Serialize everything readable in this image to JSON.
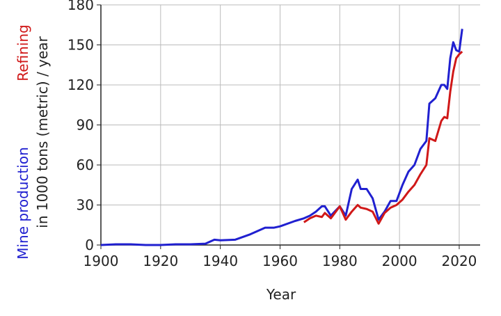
{
  "chart_data": {
    "type": "line",
    "xlabel": "Year",
    "ylabel": "in 1000 tons (metric) / year",
    "x": [
      1900,
      1905,
      1910,
      1915,
      1920,
      1925,
      1930,
      1935,
      1938,
      1940,
      1945,
      1950,
      1955,
      1958,
      1960,
      1965,
      1968,
      1970,
      1972,
      1974,
      1975,
      1977,
      1980,
      1982,
      1984,
      1986,
      1987,
      1989,
      1991,
      1993,
      1995,
      1997,
      1999,
      2001,
      2003,
      2005,
      2007,
      2009,
      2010,
      2012,
      2014,
      2015,
      2016,
      2017,
      2018,
      2019,
      2020,
      2021
    ],
    "series": [
      {
        "name": "Mine production",
        "color": "#2020d0",
        "values": [
          0,
          0.5,
          0.5,
          0,
          0,
          0.5,
          0.5,
          1,
          4,
          3.5,
          4,
          8,
          13,
          13,
          14,
          18,
          20,
          22,
          25,
          29,
          29,
          22,
          29,
          22,
          42,
          49,
          42,
          42,
          35,
          19,
          25,
          33,
          33,
          45,
          55,
          60,
          72,
          78,
          106,
          110,
          120,
          120,
          117,
          140,
          152,
          146,
          145,
          162
        ]
      },
      {
        "name": "Refining",
        "color": "#d01818",
        "values": [
          null,
          null,
          null,
          null,
          null,
          null,
          null,
          null,
          null,
          null,
          null,
          null,
          null,
          null,
          null,
          null,
          17,
          20,
          22,
          21,
          24,
          20,
          29,
          19,
          25,
          30,
          28,
          27,
          25,
          16,
          24,
          28,
          30,
          34,
          40,
          45,
          53,
          60,
          80,
          78,
          93,
          96,
          95,
          115,
          130,
          140,
          143,
          145
        ]
      }
    ],
    "xlim": [
      1900,
      2027
    ],
    "xticks": [
      1900,
      1920,
      1940,
      1960,
      1980,
      2000,
      2020
    ],
    "ylim": [
      0,
      180
    ],
    "yticks": [
      0,
      30,
      60,
      90,
      120,
      150,
      180
    ],
    "grid": true
  }
}
